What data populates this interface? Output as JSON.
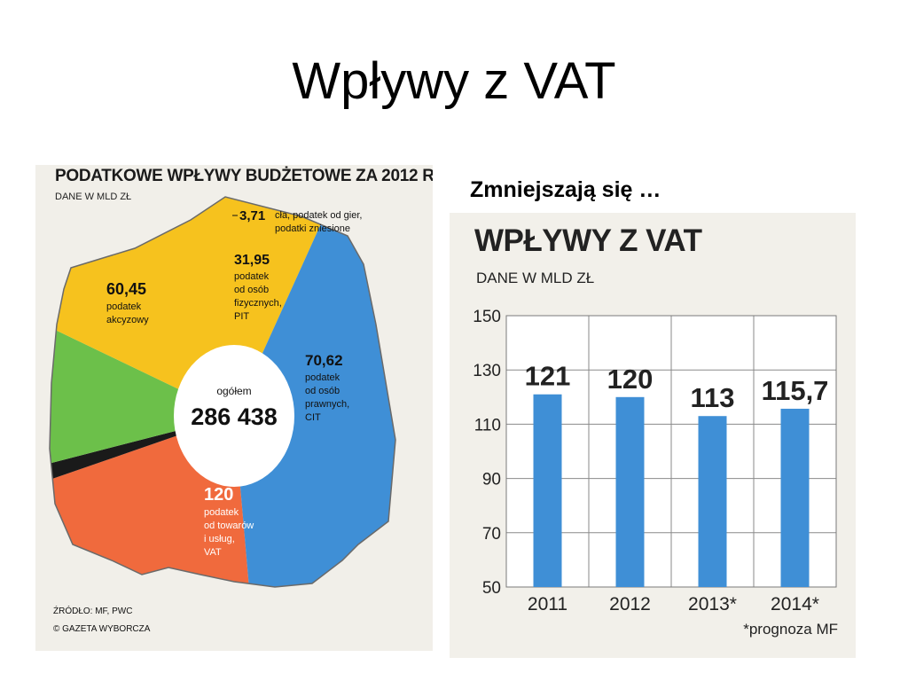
{
  "slide": {
    "title": "Wpływy z VAT",
    "subtitle": "Zmniejszają się …"
  },
  "colors": {
    "orange": "#f06a3d",
    "green": "#6cc04a",
    "yellow": "#f6c21e",
    "blue": "#3f8fd6",
    "black": "#1a1a1a",
    "bar": "#3f8fd6"
  },
  "chart_data": [
    {
      "type": "pie",
      "title": "PODATKOWE WPŁYWY BUDŻETOWE ZA 2012 R.",
      "unit": "DANE W MLD ZŁ",
      "center_label": "ogółem",
      "center_value": "286 438",
      "slices": [
        {
          "value": "60,45",
          "label_lines": [
            "podatek",
            "akcyzowy"
          ],
          "color": "#f06a3d"
        },
        {
          "value": "3,71",
          "label_lines": [
            "cła, podatek od gier,",
            "podatki zniesione"
          ],
          "color": "#1a1a1a"
        },
        {
          "value": "31,95",
          "label_lines": [
            "podatek",
            "od osób",
            "fizycznych,",
            "PIT"
          ],
          "color": "#6cc04a"
        },
        {
          "value": "70,62",
          "label_lines": [
            "podatek",
            "od osób",
            "prawnych,",
            "CIT"
          ],
          "color": "#f6c21e"
        },
        {
          "value": "120",
          "label_lines": [
            "podatek",
            "od towarów",
            "i usług,",
            "VAT"
          ],
          "color": "#3f8fd6"
        }
      ],
      "source": "ŹRÓDŁO: MF, PWC",
      "copyright": "© GAZETA WYBORCZA"
    },
    {
      "type": "bar",
      "title": "WPŁYWY Z VAT",
      "unit": "DANE W MLD ZŁ",
      "categories": [
        "2011",
        "2012",
        "2013*",
        "2014*"
      ],
      "values": [
        121,
        120,
        113,
        115.7
      ],
      "value_labels": [
        "121",
        "120",
        "113",
        "115,7"
      ],
      "yticks": [
        150,
        130,
        110,
        90,
        70,
        50
      ],
      "ylim": [
        50,
        150
      ],
      "note": "*prognoza MF",
      "grid": true
    }
  ]
}
